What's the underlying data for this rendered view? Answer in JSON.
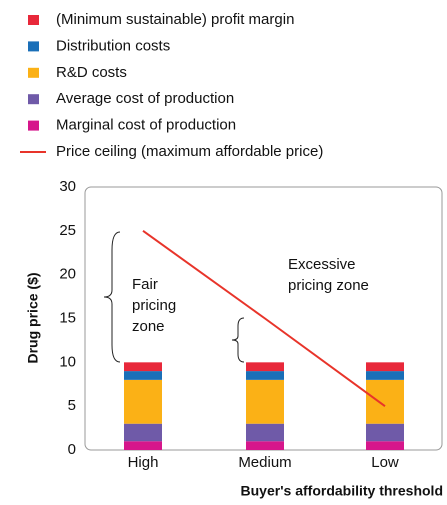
{
  "chart_data": {
    "type": "bar",
    "stacked": true,
    "categories": [
      "High",
      "Medium",
      "Low"
    ],
    "series": [
      {
        "name": "(Minimum sustainable) profit margin",
        "color": "#e8283a",
        "values": [
          1,
          1,
          1
        ]
      },
      {
        "name": "Distribution costs",
        "color": "#1a6fb8",
        "values": [
          1,
          1,
          1
        ]
      },
      {
        "name": "R&D costs",
        "color": "#fbb116",
        "values": [
          5,
          5,
          5
        ]
      },
      {
        "name": "Average cost of production",
        "color": "#6f5aa8",
        "values": [
          2,
          2,
          2
        ]
      },
      {
        "name": "Marginal cost of production",
        "color": "#d6168b",
        "values": [
          1,
          1,
          1
        ]
      },
      {
        "name": "Price ceiling (maximum affordable price)",
        "color": "#e8342a",
        "type": "line",
        "values": [
          25,
          15,
          5
        ]
      }
    ],
    "ylabel": "Drug price ($)",
    "xlabel": "Buyer's affordability threshold",
    "ylim": [
      0,
      30
    ],
    "yticks": [
      0,
      5,
      10,
      15,
      20,
      25,
      30
    ],
    "annotations": [
      {
        "text": [
          "Fair",
          "pricing",
          "zone"
        ]
      },
      {
        "text": [
          "Excessive",
          "pricing zone"
        ]
      }
    ]
  }
}
